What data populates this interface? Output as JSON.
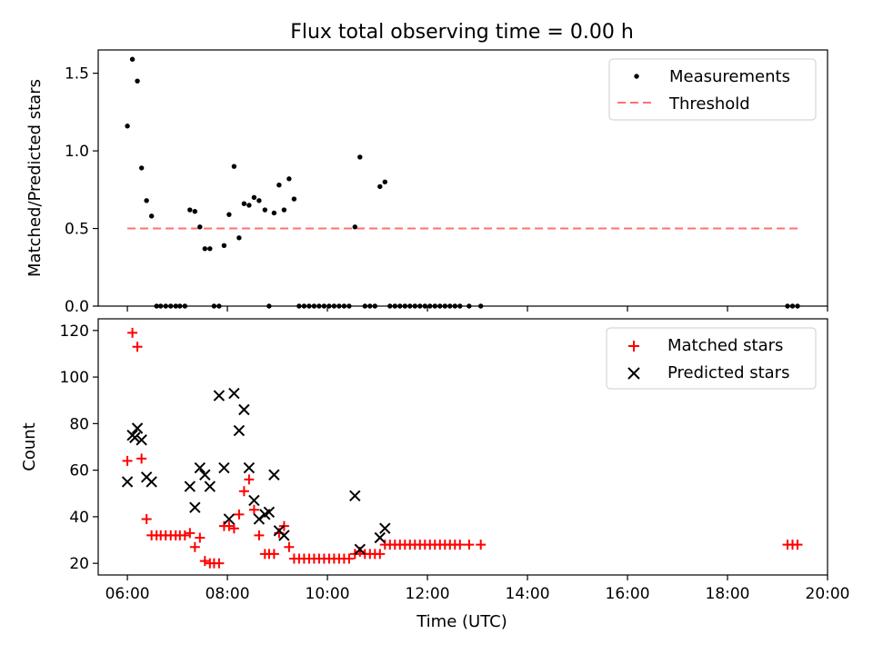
{
  "title": "Flux total observing time = 0.00 h",
  "chart_data": [
    {
      "type": "scatter",
      "ylabel": "Matched/Predicted stars",
      "xlim": [
        "05:25",
        "20:00"
      ],
      "ylim": [
        0,
        1.65
      ],
      "yticks": [
        0.0,
        0.5,
        1.0,
        1.5
      ],
      "ytick_labels": [
        "0.0",
        "0.5",
        "1.0",
        "1.5"
      ],
      "legend_position": "top-right",
      "series": [
        {
          "name": "Measurements",
          "color": "#000000",
          "marker": "dot",
          "points": [
            [
              "06:00",
              1.16
            ],
            [
              "06:06",
              1.59
            ],
            [
              "06:12",
              1.45
            ],
            [
              "06:17",
              0.89
            ],
            [
              "06:23",
              0.68
            ],
            [
              "06:29",
              0.58
            ],
            [
              "06:35",
              0
            ],
            [
              "06:40",
              0
            ],
            [
              "06:46",
              0
            ],
            [
              "06:52",
              0
            ],
            [
              "06:58",
              0
            ],
            [
              "07:03",
              0
            ],
            [
              "07:09",
              0
            ],
            [
              "07:15",
              0.62
            ],
            [
              "07:21",
              0.61
            ],
            [
              "07:27",
              0.51
            ],
            [
              "07:33",
              0.37
            ],
            [
              "07:39",
              0.37
            ],
            [
              "07:44",
              0
            ],
            [
              "07:50",
              0
            ],
            [
              "07:56",
              0.39
            ],
            [
              "08:02",
              0.59
            ],
            [
              "08:08",
              0.9
            ],
            [
              "08:14",
              0.44
            ],
            [
              "08:20",
              0.66
            ],
            [
              "08:26",
              0.65
            ],
            [
              "08:32",
              0.7
            ],
            [
              "08:38",
              0.68
            ],
            [
              "08:45",
              0.62
            ],
            [
              "08:50",
              0
            ],
            [
              "08:56",
              0.6
            ],
            [
              "09:02",
              0.78
            ],
            [
              "09:08",
              0.62
            ],
            [
              "09:14",
              0.82
            ],
            [
              "09:20",
              0.69
            ],
            [
              "09:26",
              0
            ],
            [
              "09:32",
              0
            ],
            [
              "09:38",
              0
            ],
            [
              "09:44",
              0
            ],
            [
              "09:50",
              0
            ],
            [
              "09:56",
              0
            ],
            [
              "10:02",
              0
            ],
            [
              "10:08",
              0
            ],
            [
              "10:14",
              0
            ],
            [
              "10:20",
              0
            ],
            [
              "10:26",
              0
            ],
            [
              "10:33",
              0.51
            ],
            [
              "10:39",
              0.96
            ],
            [
              "10:45",
              0
            ],
            [
              "10:51",
              0
            ],
            [
              "10:57",
              0
            ],
            [
              "11:03",
              0.77
            ],
            [
              "11:09",
              0.8
            ],
            [
              "11:15",
              0
            ],
            [
              "11:21",
              0
            ],
            [
              "11:27",
              0
            ],
            [
              "11:33",
              0
            ],
            [
              "11:39",
              0
            ],
            [
              "11:45",
              0
            ],
            [
              "11:51",
              0
            ],
            [
              "11:57",
              0
            ],
            [
              "12:03",
              0
            ],
            [
              "12:09",
              0
            ],
            [
              "12:15",
              0
            ],
            [
              "12:21",
              0
            ],
            [
              "12:27",
              0
            ],
            [
              "12:33",
              0
            ],
            [
              "12:39",
              0
            ],
            [
              "12:50",
              0
            ],
            [
              "13:04",
              0
            ],
            [
              "19:12",
              0
            ],
            [
              "19:18",
              0
            ],
            [
              "19:24",
              0
            ]
          ]
        },
        {
          "name": "Threshold",
          "color": "#ff7070",
          "style": "dashed",
          "points": [
            [
              "06:00",
              0.5
            ],
            [
              "19:24",
              0.5
            ]
          ]
        }
      ]
    },
    {
      "type": "scatter",
      "xlabel": "Time (UTC)",
      "ylabel": "Count",
      "xlim": [
        "05:25",
        "20:00"
      ],
      "ylim": [
        15,
        125
      ],
      "xticks": [
        "06:00",
        "08:00",
        "10:00",
        "12:00",
        "14:00",
        "16:00",
        "18:00",
        "20:00"
      ],
      "yticks": [
        20,
        40,
        60,
        80,
        100,
        120
      ],
      "legend_position": "top-right",
      "series": [
        {
          "name": "Matched stars",
          "color": "#ff0000",
          "marker": "+",
          "points": [
            [
              "06:00",
              64
            ],
            [
              "06:06",
              119
            ],
            [
              "06:12",
              113
            ],
            [
              "06:17",
              65
            ],
            [
              "06:23",
              39
            ],
            [
              "06:29",
              32
            ],
            [
              "06:35",
              32
            ],
            [
              "06:40",
              32
            ],
            [
              "06:46",
              32
            ],
            [
              "06:52",
              32
            ],
            [
              "06:58",
              32
            ],
            [
              "07:03",
              32
            ],
            [
              "07:09",
              32
            ],
            [
              "07:15",
              33
            ],
            [
              "07:21",
              27
            ],
            [
              "07:27",
              31
            ],
            [
              "07:33",
              21
            ],
            [
              "07:39",
              20
            ],
            [
              "07:44",
              20
            ],
            [
              "07:50",
              20
            ],
            [
              "07:56",
              36
            ],
            [
              "08:02",
              36
            ],
            [
              "08:08",
              35
            ],
            [
              "08:14",
              41
            ],
            [
              "08:20",
              51
            ],
            [
              "08:26",
              56
            ],
            [
              "08:32",
              43
            ],
            [
              "08:38",
              32
            ],
            [
              "08:45",
              24
            ],
            [
              "08:50",
              24
            ],
            [
              "08:56",
              24
            ],
            [
              "09:02",
              33
            ],
            [
              "09:08",
              36
            ],
            [
              "09:14",
              27
            ],
            [
              "09:20",
              22
            ],
            [
              "09:26",
              22
            ],
            [
              "09:32",
              22
            ],
            [
              "09:38",
              22
            ],
            [
              "09:44",
              22
            ],
            [
              "09:50",
              22
            ],
            [
              "09:56",
              22
            ],
            [
              "10:02",
              22
            ],
            [
              "10:08",
              22
            ],
            [
              "10:14",
              22
            ],
            [
              "10:20",
              22
            ],
            [
              "10:26",
              22
            ],
            [
              "10:33",
              24
            ],
            [
              "10:39",
              25
            ],
            [
              "10:45",
              24
            ],
            [
              "10:51",
              24
            ],
            [
              "10:57",
              24
            ],
            [
              "11:03",
              24
            ],
            [
              "11:09",
              28
            ],
            [
              "11:15",
              28
            ],
            [
              "11:21",
              28
            ],
            [
              "11:27",
              28
            ],
            [
              "11:33",
              28
            ],
            [
              "11:39",
              28
            ],
            [
              "11:45",
              28
            ],
            [
              "11:51",
              28
            ],
            [
              "11:57",
              28
            ],
            [
              "12:03",
              28
            ],
            [
              "12:09",
              28
            ],
            [
              "12:15",
              28
            ],
            [
              "12:21",
              28
            ],
            [
              "12:27",
              28
            ],
            [
              "12:33",
              28
            ],
            [
              "12:39",
              28
            ],
            [
              "12:50",
              28
            ],
            [
              "13:04",
              28
            ],
            [
              "19:12",
              28
            ],
            [
              "19:18",
              28
            ],
            [
              "19:24",
              28
            ]
          ]
        },
        {
          "name": "Predicted stars",
          "color": "#000000",
          "marker": "x",
          "points": [
            [
              "06:00",
              55
            ],
            [
              "06:06",
              75
            ],
            [
              "06:09",
              74
            ],
            [
              "06:12",
              78
            ],
            [
              "06:17",
              73
            ],
            [
              "06:23",
              57
            ],
            [
              "06:29",
              55
            ],
            [
              "07:15",
              53
            ],
            [
              "07:21",
              44
            ],
            [
              "07:27",
              61
            ],
            [
              "07:33",
              58
            ],
            [
              "07:39",
              53
            ],
            [
              "07:50",
              92
            ],
            [
              "07:56",
              61
            ],
            [
              "08:02",
              39
            ],
            [
              "08:08",
              93
            ],
            [
              "08:14",
              77
            ],
            [
              "08:20",
              86
            ],
            [
              "08:26",
              61
            ],
            [
              "08:32",
              47
            ],
            [
              "08:38",
              39
            ],
            [
              "08:45",
              41
            ],
            [
              "08:50",
              42
            ],
            [
              "08:56",
              58
            ],
            [
              "09:02",
              34
            ],
            [
              "09:08",
              32
            ],
            [
              "10:33",
              49
            ],
            [
              "10:39",
              26
            ],
            [
              "11:03",
              31
            ],
            [
              "11:09",
              35
            ]
          ]
        }
      ]
    }
  ]
}
